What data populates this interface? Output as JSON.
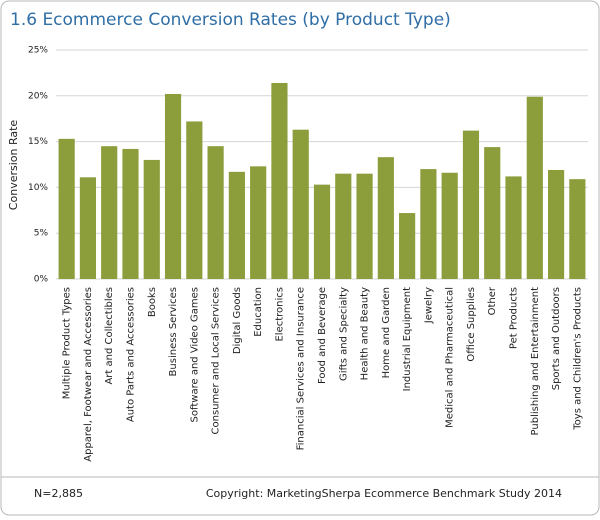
{
  "chart_data": {
    "type": "bar",
    "title": "1.6 Ecommerce Conversion Rates (by Product Type)",
    "y_label": "Conversion Rate",
    "categories": [
      "Multiple Product Types",
      "Apparel, Footwear and Accessories",
      "Art and Collectibles",
      "Auto Parts and Accessories",
      "Books",
      "Business Services",
      "Software and Video Games",
      "Consumer and Local Services",
      "Digital Goods",
      "Education",
      "Electronics",
      "Financial Services and Insurance",
      "Food and Beverage",
      "Gifts and Specialty",
      "Health and Beauty",
      "Home and Garden",
      "Industrial Equipment",
      "Jewelry",
      "Medical and Pharmaceutical",
      "Office Supplies",
      "Other",
      "Pet Products",
      "Publishing and Entertainment",
      "Sports and Outdoors",
      "Toys and Children's Products"
    ],
    "values": [
      15.3,
      11.1,
      14.5,
      14.2,
      13.0,
      20.2,
      17.2,
      14.5,
      11.7,
      12.3,
      21.4,
      16.3,
      10.3,
      11.5,
      11.5,
      13.3,
      7.2,
      12.0,
      11.6,
      16.2,
      14.4,
      11.2,
      19.9,
      11.9,
      10.9
    ],
    "color": "#8c9d3b",
    "ylim": [
      0,
      25
    ],
    "yticks": [
      {
        "value": 0,
        "label": "0%"
      },
      {
        "value": 5,
        "label": "5%"
      },
      {
        "value": 10,
        "label": "10%"
      },
      {
        "value": 15,
        "label": "15%"
      },
      {
        "value": 20,
        "label": "20%"
      },
      {
        "value": 25,
        "label": "25%"
      }
    ],
    "grid": true,
    "footnote": "N=2,885",
    "source": "Copyright: MarketingSherpa Ecommerce Benchmark Study 2014"
  }
}
